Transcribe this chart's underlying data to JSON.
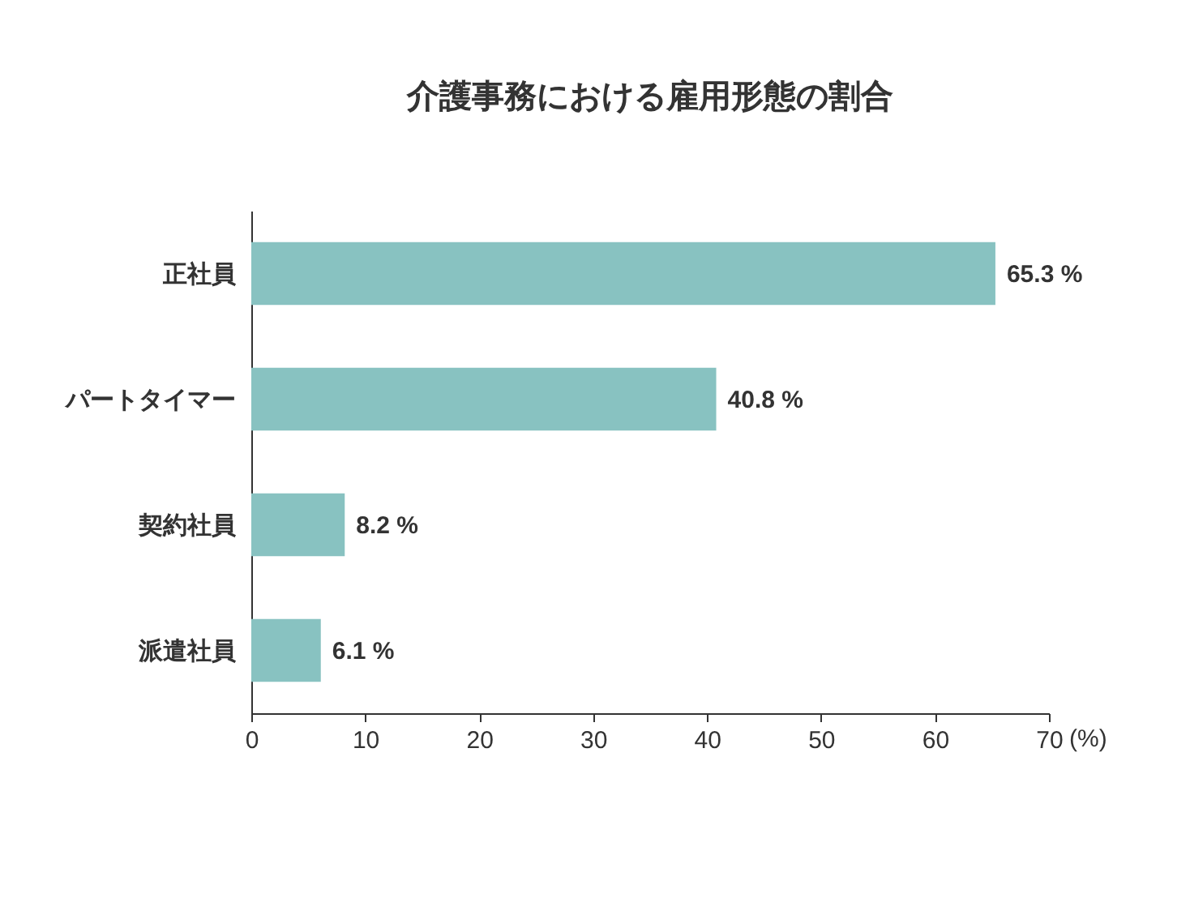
{
  "chart_data": {
    "type": "bar",
    "orientation": "horizontal",
    "title": "介護事務における雇用形態の割合",
    "xlabel": "(%)",
    "categories": [
      "正社員",
      "パートタイマー",
      "契約社員",
      "派遣社員"
    ],
    "values": [
      65.3,
      40.8,
      8.2,
      6.1
    ],
    "value_labels": [
      "65.3 %",
      "40.8 %",
      "8.2 %",
      "6.1 %"
    ],
    "color": "#88c2c1",
    "xlim": [
      0,
      70
    ],
    "xticks": [
      0,
      10,
      20,
      30,
      40,
      50,
      60,
      70
    ],
    "grid": false
  }
}
